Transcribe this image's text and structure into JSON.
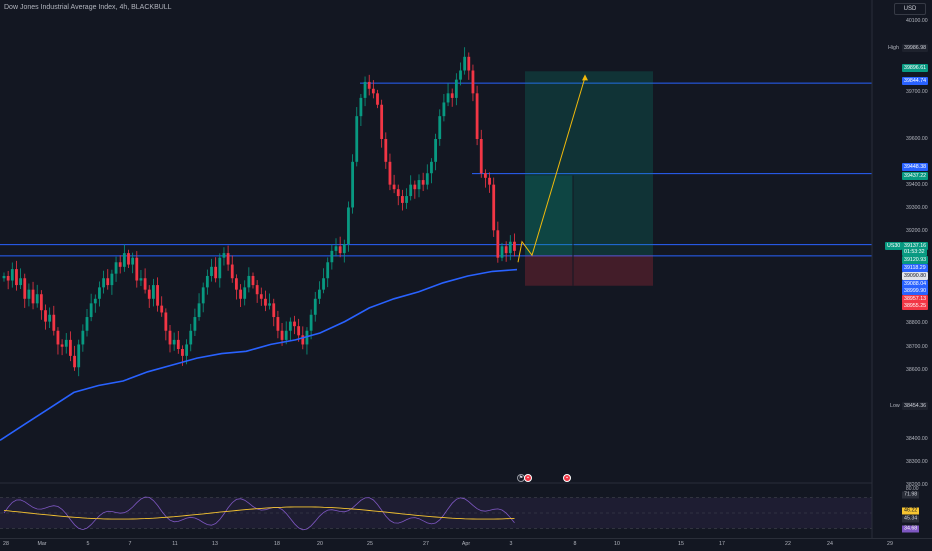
{
  "header": {
    "title": "Dow Jones Industrial Average Index, 4h, BLACKBULL",
    "currency": "USD"
  },
  "price_axis": {
    "ticks": [
      "40100.00",
      "39700.00",
      "39600.00",
      "39400.00",
      "39300.00",
      "39200.00",
      "38800.00",
      "38700.00",
      "38600.00",
      "38400.00",
      "38300.00",
      "38200.00"
    ],
    "tags": [
      {
        "label": "39896.61",
        "color": "#089981",
        "text": "#ffffff"
      },
      {
        "label": "39844.74",
        "color": "#2962ff",
        "text": "#ffffff"
      },
      {
        "label": "39448.38",
        "color": "#2962ff",
        "text": "#ffffff"
      },
      {
        "label": "39437.22",
        "color": "#089981",
        "text": "#ffffff"
      },
      {
        "label": "39137.16",
        "color": "#089981",
        "text": "#ffffff"
      },
      {
        "label": "01:53:32",
        "color": "#089981",
        "text": "#ffffff"
      },
      {
        "label": "39120.93",
        "color": "#089981",
        "text": "#ffffff"
      },
      {
        "label": "39118.29",
        "color": "#2962ff",
        "text": "#ffffff"
      },
      {
        "label": "39090.80",
        "color": "#e0e3eb",
        "text": "#131722"
      },
      {
        "label": "39088.04",
        "color": "#2962ff",
        "text": "#ffffff"
      },
      {
        "label": "38999.90",
        "color": "#2962ff",
        "text": "#ffffff"
      },
      {
        "label": "38957.13",
        "color": "#f23645",
        "text": "#ffffff"
      },
      {
        "label": "38955.25",
        "color": "#f23645",
        "text": "#ffffff"
      }
    ],
    "high_label": "High",
    "high_value": "39986.98",
    "low_label": "Low",
    "low_value": "38454.36",
    "symbol_tag": "US30"
  },
  "time_axis": {
    "labels": [
      "28",
      "Mar",
      "5",
      "7",
      "11",
      "13",
      "18",
      "20",
      "25",
      "27",
      "Apr",
      "3",
      "8",
      "10",
      "15",
      "17",
      "22",
      "24",
      "29"
    ]
  },
  "rsi": {
    "ticks": [
      "80.00"
    ],
    "tags": [
      {
        "label": "71.98",
        "color": "#2a2e39",
        "text": "#d1d4dc"
      },
      {
        "label": "46.22",
        "color": "#f7c531",
        "text": "#131722"
      },
      {
        "label": "45.34",
        "color": "#2a2e39",
        "text": "#d1d4dc"
      },
      {
        "label": "34.68",
        "color": "#7e57c2",
        "text": "#ffffff"
      }
    ]
  },
  "events": [
    {
      "icon": "flag-event-icon",
      "glyph": "⚑"
    },
    {
      "icon": "us-flag-event-icon",
      "glyph": "▪"
    },
    {
      "icon": "us-flag-event-icon",
      "glyph": "▪"
    }
  ],
  "colors": {
    "background": "#131722",
    "up": "#089981",
    "down": "#f23645",
    "ma": "#2962ff",
    "rsi": "#7e57c2",
    "rsi_ma": "#f7c531",
    "projection": "#f0b90b"
  },
  "chart_data": {
    "type": "candlestick",
    "timeframe": "4h",
    "symbol": "US30",
    "price_range": [
      38150,
      40130
    ],
    "horizontal_levels": [
      39844.74,
      39448.38,
      39137.16,
      39088.04
    ],
    "ma_values": [
      38280,
      38350,
      38420,
      38490,
      38520,
      38540,
      38580,
      38610,
      38640,
      38660,
      38670,
      38700,
      38720,
      38750,
      38800,
      38860,
      38900,
      38930,
      38970,
      39000,
      39020,
      39028
    ],
    "position": {
      "entry": 39090.8,
      "target": 39896.61,
      "stop": 38957.13
    },
    "rsi_levels": [
      71.98,
      46.22,
      45.34,
      34.68
    ]
  }
}
